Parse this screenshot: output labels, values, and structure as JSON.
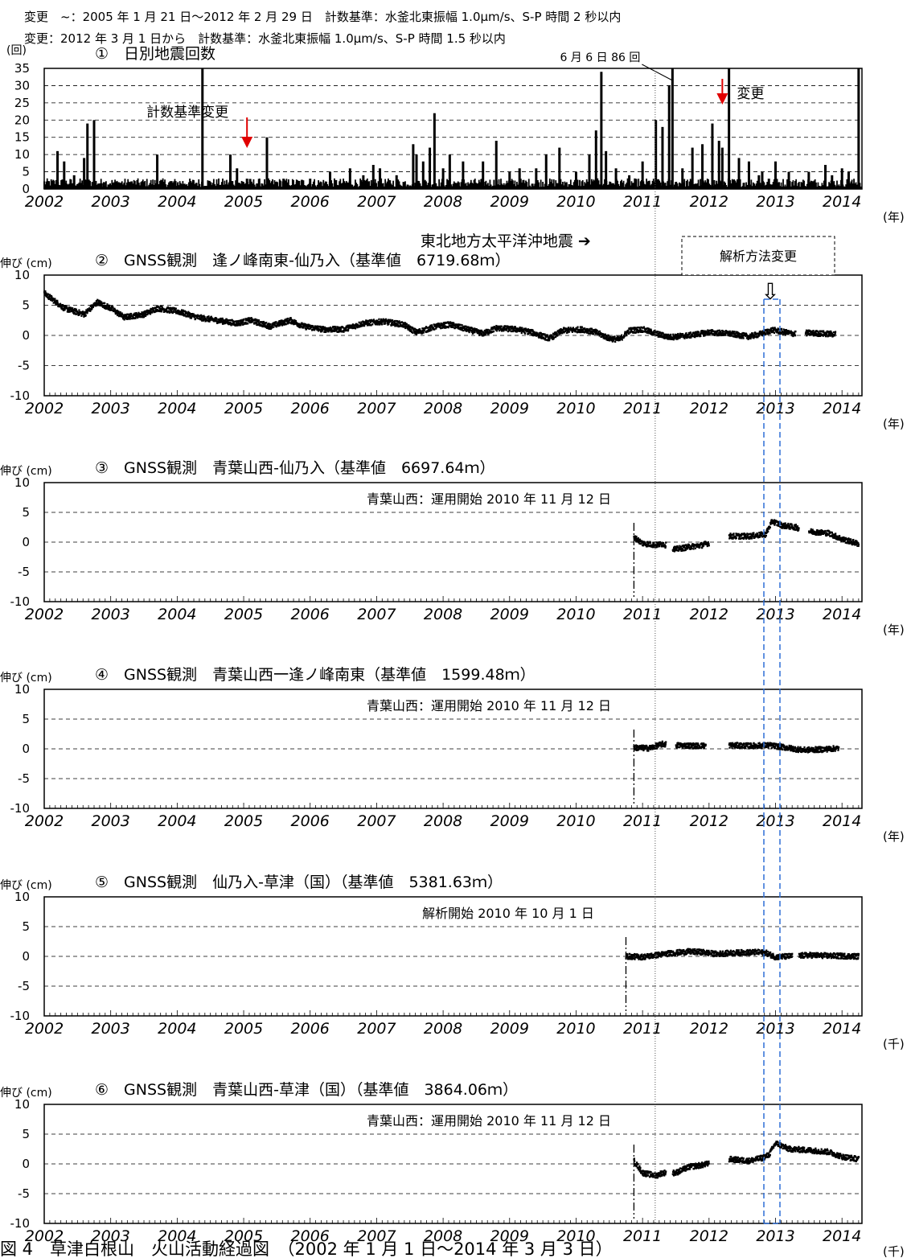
{
  "header": {
    "line1_label": "変更　~",
    "line1_text": "：2005 年 1 月 21 日～2012 年 2 月 29 日　計数基準：水釜北東振幅 1.0μm/s、S-P 時間 2 秒以内",
    "line2_label": "変更",
    "line2_text": "：2012 年 3 月 1 日から　計数基準：水釜北東振幅 1.0μm/s、S-P 時間 1.5 秒以内"
  },
  "x_axis": {
    "ticks": [
      "2002",
      "2003",
      "2004",
      "2005",
      "2006",
      "2007",
      "2008",
      "2009",
      "2010",
      "2011",
      "2012",
      "2013",
      "2014"
    ],
    "unit": "(年)",
    "unit_alt": "(千)"
  },
  "annotations": {
    "tohoku_eq": "東北地方太平洋沖地震",
    "tohoku_arrow": "➔",
    "analysis_change": "解析方法変更",
    "analysis_arrow": "⇩"
  },
  "footer": {
    "caption": "図 4　草津白根山　火山活動経過図　（2002 年 1 月 1 日～2014 年 3 月 3 日）"
  },
  "chart_data": [
    {
      "id": "p1",
      "type": "bar",
      "title": "①　日別地震回数",
      "ylabel": "(回)",
      "ylim": [
        0,
        35
      ],
      "yticks": [
        0,
        5,
        10,
        15,
        20,
        25,
        30,
        35
      ],
      "xlim": [
        2002,
        2014.3
      ],
      "annotations": [
        {
          "text": "計数基準変更",
          "x": 2005.05
        },
        {
          "text": "変更",
          "x": 2012.2
        },
        {
          "text": "6 月 6 日 86 回",
          "x": 2011.45
        }
      ],
      "values": [
        [
          2002.2,
          11
        ],
        [
          2002.3,
          8
        ],
        [
          2002.45,
          4
        ],
        [
          2002.6,
          9
        ],
        [
          2002.65,
          19
        ],
        [
          2002.75,
          20
        ],
        [
          2002.9,
          2
        ],
        [
          2003.1,
          2
        ],
        [
          2003.3,
          2
        ],
        [
          2003.5,
          2
        ],
        [
          2003.7,
          10
        ],
        [
          2003.9,
          2
        ],
        [
          2004.2,
          2
        ],
        [
          2004.38,
          35
        ],
        [
          2004.5,
          2
        ],
        [
          2004.8,
          10
        ],
        [
          2004.9,
          6
        ],
        [
          2005.05,
          3
        ],
        [
          2005.35,
          15
        ],
        [
          2005.6,
          3
        ],
        [
          2005.8,
          2
        ],
        [
          2006.0,
          3
        ],
        [
          2006.3,
          5
        ],
        [
          2006.6,
          6
        ],
        [
          2006.8,
          4
        ],
        [
          2006.95,
          7
        ],
        [
          2007.05,
          6
        ],
        [
          2007.3,
          4
        ],
        [
          2007.55,
          13
        ],
        [
          2007.6,
          10
        ],
        [
          2007.7,
          8
        ],
        [
          2007.8,
          12
        ],
        [
          2007.87,
          22
        ],
        [
          2008.0,
          6
        ],
        [
          2008.1,
          10
        ],
        [
          2008.3,
          8
        ],
        [
          2008.6,
          8
        ],
        [
          2008.8,
          14
        ],
        [
          2009.0,
          5
        ],
        [
          2009.15,
          6
        ],
        [
          2009.4,
          6
        ],
        [
          2009.55,
          10
        ],
        [
          2009.75,
          12
        ],
        [
          2010.0,
          5
        ],
        [
          2010.2,
          10
        ],
        [
          2010.3,
          17
        ],
        [
          2010.38,
          34
        ],
        [
          2010.45,
          11
        ],
        [
          2010.6,
          6
        ],
        [
          2010.8,
          4
        ],
        [
          2011.0,
          8
        ],
        [
          2011.2,
          20
        ],
        [
          2011.3,
          18
        ],
        [
          2011.4,
          30
        ],
        [
          2011.45,
          35
        ],
        [
          2011.6,
          6
        ],
        [
          2011.75,
          12
        ],
        [
          2011.9,
          13
        ],
        [
          2012.05,
          19
        ],
        [
          2012.15,
          14
        ],
        [
          2012.2,
          12
        ],
        [
          2012.3,
          35
        ],
        [
          2012.45,
          9
        ],
        [
          2012.6,
          8
        ],
        [
          2012.75,
          4
        ],
        [
          2012.8,
          5
        ],
        [
          2012.9,
          3
        ],
        [
          2013.0,
          8
        ],
        [
          2013.2,
          5
        ],
        [
          2013.5,
          5
        ],
        [
          2013.75,
          7
        ],
        [
          2013.85,
          4
        ],
        [
          2014.0,
          6
        ],
        [
          2014.1,
          5
        ],
        [
          2014.25,
          35
        ]
      ]
    },
    {
      "id": "p2",
      "type": "scatter",
      "title": "②　GNSS観測　逢ノ峰南東-仙乃入（基準値　6719.68ｍ）",
      "ylabel": "伸び (cm)",
      "ylim": [
        -10,
        10
      ],
      "yticks": [
        -10,
        -5,
        0,
        5,
        10
      ],
      "xlim": [
        2002,
        2014.3
      ],
      "series": [
        {
          "values": [
            [
              2002.0,
              7
            ],
            [
              2002.3,
              4.5
            ],
            [
              2002.6,
              3.5
            ],
            [
              2002.8,
              5.5
            ],
            [
              2003.0,
              4.5
            ],
            [
              2003.2,
              3
            ],
            [
              2003.5,
              3.5
            ],
            [
              2003.7,
              4.5
            ],
            [
              2004.0,
              4
            ],
            [
              2004.3,
              3
            ],
            [
              2004.6,
              2.5
            ],
            [
              2004.9,
              2
            ],
            [
              2005.1,
              2.5
            ],
            [
              2005.4,
              1.5
            ],
            [
              2005.7,
              2.5
            ],
            [
              2005.9,
              1.5
            ],
            [
              2006.2,
              1
            ],
            [
              2006.5,
              1
            ],
            [
              2006.8,
              2
            ],
            [
              2007.1,
              2.3
            ],
            [
              2007.4,
              1.8
            ],
            [
              2007.6,
              0.5
            ],
            [
              2007.9,
              1.5
            ],
            [
              2008.1,
              1.8
            ],
            [
              2008.3,
              1.2
            ],
            [
              2008.6,
              0.3
            ],
            [
              2008.8,
              1.2
            ],
            [
              2009.1,
              1
            ],
            [
              2009.3,
              0.6
            ],
            [
              2009.6,
              -0.5
            ],
            [
              2009.8,
              0.8
            ],
            [
              2010.1,
              1
            ],
            [
              2010.3,
              0.5
            ],
            [
              2010.5,
              -0.5
            ],
            [
              2010.65,
              -0.7
            ],
            [
              2010.8,
              0.8
            ],
            [
              2011.0,
              1
            ],
            [
              2011.2,
              0.3
            ],
            [
              2011.4,
              -0.3
            ],
            [
              2011.7,
              0
            ],
            [
              2012.0,
              0.5
            ],
            [
              2012.3,
              0.3
            ],
            [
              2012.6,
              -0.2
            ],
            [
              2012.8,
              0.3
            ],
            [
              2012.95,
              0.9
            ],
            [
              2013.1,
              0.6
            ],
            [
              2013.25,
              0.3
            ],
            [
              2013.5,
              0.4
            ],
            [
              2013.7,
              0.3
            ],
            [
              2013.9,
              0.2
            ]
          ],
          "gaps": [
            [
              2013.3,
              2013.45
            ]
          ]
        }
      ]
    },
    {
      "id": "p3",
      "type": "scatter",
      "title": "③　GNSS観測　青葉山西-仙乃入（基準値　6697.64ｍ）",
      "ylabel": "伸び (cm)",
      "ylim": [
        -10,
        10
      ],
      "yticks": [
        -10,
        -5,
        0,
        5,
        10
      ],
      "xlim": [
        2002,
        2014.3
      ],
      "annotation": "青葉山西：運用開始 2010 年 11 月 12 日",
      "start_line": 2010.87,
      "series": [
        {
          "values": [
            [
              2010.87,
              0.8
            ],
            [
              2011.0,
              -0.2
            ],
            [
              2011.2,
              -0.5
            ],
            [
              2011.3,
              -0.3
            ],
            [
              2011.5,
              -1.2
            ],
            [
              2011.7,
              -0.8
            ],
            [
              2011.9,
              -0.5
            ],
            [
              2012.3,
              1
            ],
            [
              2012.6,
              1
            ],
            [
              2012.85,
              1.3
            ],
            [
              2012.95,
              3.5
            ],
            [
              2013.1,
              2.8
            ],
            [
              2013.3,
              2.5
            ],
            [
              2013.5,
              1.8
            ],
            [
              2013.8,
              1.5
            ],
            [
              2014.0,
              0.5
            ],
            [
              2014.25,
              -0.3
            ]
          ],
          "gaps": [
            [
              2011.35,
              2011.45
            ],
            [
              2012.0,
              2012.3
            ],
            [
              2013.35,
              2013.5
            ]
          ]
        }
      ]
    },
    {
      "id": "p4",
      "type": "scatter",
      "title": "④　GNSS観測　青葉山西一逢ノ峰南東（基準値　1599.48ｍ）",
      "ylabel": "伸び (cm)",
      "ylim": [
        -10,
        10
      ],
      "yticks": [
        -10,
        -5,
        0,
        5,
        10
      ],
      "xlim": [
        2002,
        2014.3
      ],
      "annotation": "青葉山西：運用開始 2010 年 11 月 12 日",
      "start_line": 2010.87,
      "series": [
        {
          "values": [
            [
              2010.87,
              0.2
            ],
            [
              2011.1,
              0.1
            ],
            [
              2011.3,
              0.8
            ],
            [
              2011.5,
              0.6
            ],
            [
              2011.8,
              0.5
            ],
            [
              2012.3,
              0.6
            ],
            [
              2012.6,
              0.5
            ],
            [
              2012.9,
              0.6
            ],
            [
              2013.1,
              0.3
            ],
            [
              2013.4,
              -0.2
            ],
            [
              2013.7,
              -0.1
            ],
            [
              2013.95,
              0.1
            ]
          ],
          "gaps": [
            [
              2011.35,
              2011.5
            ],
            [
              2011.95,
              2012.3
            ]
          ]
        }
      ]
    },
    {
      "id": "p5",
      "type": "scatter",
      "title": "⑤　GNSS観測　仙乃入-草津（国）（基準値　5381.63ｍ）",
      "ylabel": "伸び (cm)",
      "ylim": [
        -10,
        10
      ],
      "yticks": [
        -10,
        -5,
        0,
        5,
        10
      ],
      "xlim": [
        2002,
        2014.3
      ],
      "annotation": "解析開始 2010 年 10 月 1 日",
      "start_line": 2010.75,
      "series": [
        {
          "values": [
            [
              2010.75,
              0
            ],
            [
              2011.0,
              -0.1
            ],
            [
              2011.2,
              0.2
            ],
            [
              2011.4,
              0.5
            ],
            [
              2011.7,
              0.8
            ],
            [
              2011.9,
              0.7
            ],
            [
              2012.1,
              0.4
            ],
            [
              2012.4,
              0.6
            ],
            [
              2012.7,
              0.7
            ],
            [
              2012.85,
              0.6
            ],
            [
              2013.0,
              -0.1
            ],
            [
              2013.2,
              0
            ],
            [
              2013.5,
              0.2
            ],
            [
              2013.8,
              0.1
            ],
            [
              2014.25,
              0
            ]
          ],
          "gaps": [
            [
              2013.25,
              2013.35
            ]
          ]
        }
      ]
    },
    {
      "id": "p6",
      "type": "scatter",
      "title": "⑥　GNSS観測　青葉山西-草津（国）（基準値　3864.06ｍ）",
      "ylabel": "伸び (cm)",
      "ylim": [
        -10,
        10
      ],
      "yticks": [
        -10,
        -5,
        0,
        5,
        10
      ],
      "xlim": [
        2002,
        2014.3
      ],
      "annotation": "青葉山西：運用開始 2010 年 11 月 12 日",
      "start_line": 2010.87,
      "series": [
        {
          "values": [
            [
              2010.87,
              0.5
            ],
            [
              2011.0,
              -1.5
            ],
            [
              2011.2,
              -2
            ],
            [
              2011.3,
              -1.5
            ],
            [
              2011.5,
              -1.5
            ],
            [
              2011.7,
              -0.5
            ],
            [
              2011.9,
              -0.2
            ],
            [
              2012.3,
              0.8
            ],
            [
              2012.6,
              0.5
            ],
            [
              2012.8,
              1
            ],
            [
              2012.9,
              1.5
            ],
            [
              2013.0,
              3.5
            ],
            [
              2013.2,
              2.5
            ],
            [
              2013.5,
              2.3
            ],
            [
              2013.8,
              2
            ],
            [
              2014.0,
              1.2
            ],
            [
              2014.25,
              0.8
            ]
          ],
          "gaps": [
            [
              2011.35,
              2011.45
            ],
            [
              2012.0,
              2012.3
            ]
          ]
        }
      ]
    }
  ]
}
